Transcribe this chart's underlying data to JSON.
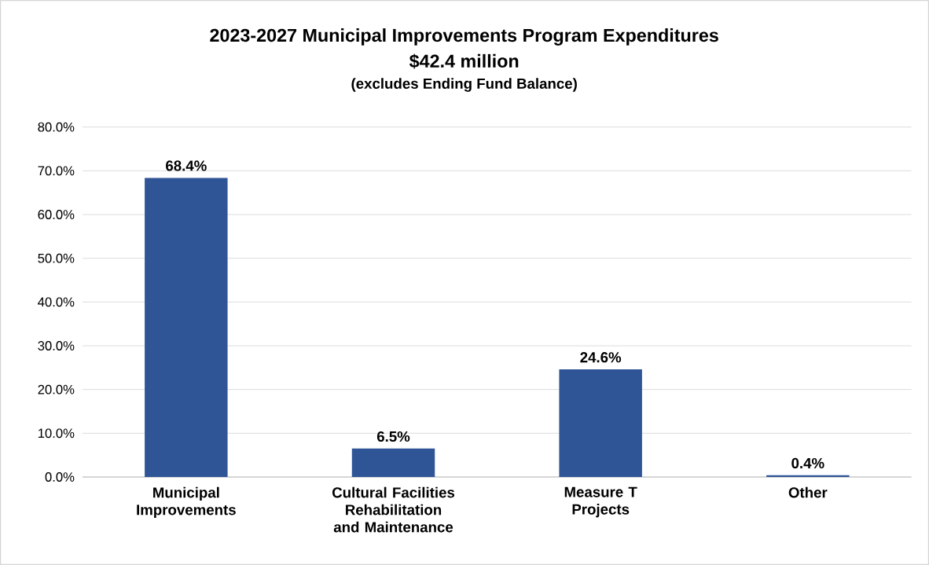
{
  "chart_data": {
    "type": "bar",
    "title": "2023-2027 Municipal Improvements Program Expenditures",
    "subtitle": "$42.4 million",
    "annotations": [
      "(excludes Ending Fund Balance)"
    ],
    "categories": [
      "Municipal Improvements",
      "Cultural Facilities Rehabilitation and Maintenance",
      "Measure T Projects",
      "Other"
    ],
    "values": [
      68.4,
      6.5,
      24.6,
      0.4
    ],
    "value_labels": [
      "68.4%",
      "6.5%",
      "24.6%",
      "0.4%"
    ],
    "color": "#2f5597",
    "ylim": [
      0,
      80
    ],
    "yticks": [
      {
        "value": 0,
        "label": "0.0%"
      },
      {
        "value": 10,
        "label": "10.0%"
      },
      {
        "value": 20,
        "label": "20.0%"
      },
      {
        "value": 30,
        "label": "30.0%"
      },
      {
        "value": 40,
        "label": "40.0%"
      },
      {
        "value": 50,
        "label": "50.0%"
      },
      {
        "value": 60,
        "label": "60.0%"
      },
      {
        "value": 70,
        "label": "70.0%"
      },
      {
        "value": 80,
        "label": "80.0%"
      }
    ],
    "grid": "y"
  }
}
